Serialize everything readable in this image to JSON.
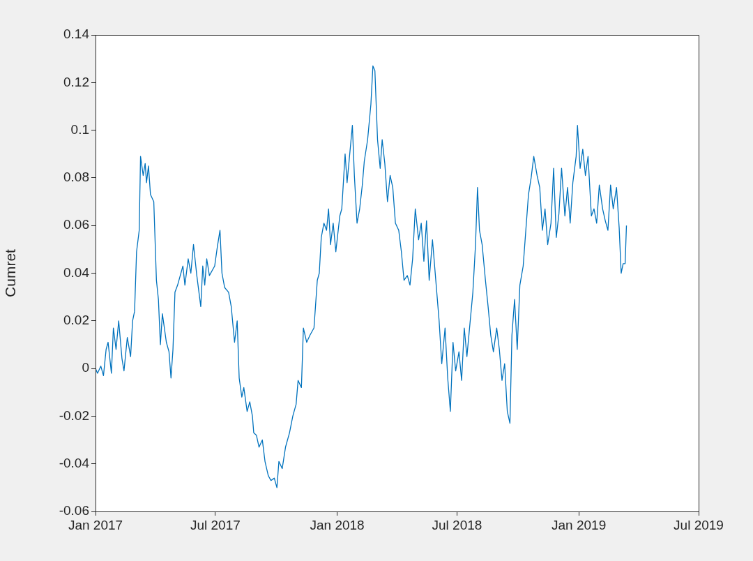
{
  "chart_data": {
    "type": "line",
    "ylabel": "Cumret",
    "grid": false,
    "marker": "none",
    "legend": false,
    "xlim": [
      "2017-01-01",
      "2019-07-01"
    ],
    "xticks": [
      {
        "value": "2017-01-01",
        "label": "Jan 2017"
      },
      {
        "value": "2017-07-01",
        "label": "Jul 2017"
      },
      {
        "value": "2018-01-01",
        "label": "Jan 2018"
      },
      {
        "value": "2018-07-01",
        "label": "Jul 2018"
      },
      {
        "value": "2019-01-01",
        "label": "Jan 2019"
      },
      {
        "value": "2019-07-01",
        "label": "Jul 2019"
      }
    ],
    "ylim": [
      -0.06,
      0.14
    ],
    "yticks": [
      -0.06,
      -0.04,
      -0.02,
      0,
      0.02,
      0.04,
      0.06,
      0.08,
      0.1,
      0.12,
      0.14
    ],
    "x": [
      "2017-01-01",
      "2017-01-04",
      "2017-01-09",
      "2017-01-13",
      "2017-01-17",
      "2017-01-20",
      "2017-01-25",
      "2017-01-28",
      "2017-02-01",
      "2017-02-05",
      "2017-02-10",
      "2017-02-13",
      "2017-02-18",
      "2017-02-23",
      "2017-02-26",
      "2017-03-01",
      "2017-03-04",
      "2017-03-08",
      "2017-03-10",
      "2017-03-14",
      "2017-03-17",
      "2017-03-19",
      "2017-03-22",
      "2017-03-25",
      "2017-03-30",
      "2017-04-03",
      "2017-04-06",
      "2017-04-09",
      "2017-04-12",
      "2017-04-18",
      "2017-04-22",
      "2017-04-25",
      "2017-04-28",
      "2017-05-01",
      "2017-05-05",
      "2017-05-13",
      "2017-05-16",
      "2017-05-21",
      "2017-05-25",
      "2017-05-29",
      "2017-06-03",
      "2017-06-09",
      "2017-06-12",
      "2017-06-15",
      "2017-06-18",
      "2017-06-22",
      "2017-06-30",
      "2017-07-04",
      "2017-07-08",
      "2017-07-11",
      "2017-07-15",
      "2017-07-21",
      "2017-07-25",
      "2017-07-30",
      "2017-08-03",
      "2017-08-06",
      "2017-08-10",
      "2017-08-13",
      "2017-08-18",
      "2017-08-22",
      "2017-08-26",
      "2017-08-28",
      "2017-09-01",
      "2017-09-05",
      "2017-09-10",
      "2017-09-14",
      "2017-09-19",
      "2017-09-23",
      "2017-09-28",
      "2017-10-02",
      "2017-10-05",
      "2017-10-10",
      "2017-10-15",
      "2017-10-21",
      "2017-10-26",
      "2017-10-31",
      "2017-11-03",
      "2017-11-08",
      "2017-11-11",
      "2017-11-16",
      "2017-11-21",
      "2017-11-27",
      "2017-12-02",
      "2017-12-05",
      "2017-12-08",
      "2017-12-12",
      "2017-12-16",
      "2017-12-19",
      "2017-12-22",
      "2017-12-26",
      "2017-12-30",
      "2018-01-05",
      "2018-01-08",
      "2018-01-13",
      "2018-01-16",
      "2018-01-19",
      "2018-01-24",
      "2018-01-27",
      "2018-01-31",
      "2018-02-04",
      "2018-02-08",
      "2018-02-11",
      "2018-02-16",
      "2018-02-21",
      "2018-02-24",
      "2018-02-27",
      "2018-03-03",
      "2018-03-07",
      "2018-03-10",
      "2018-03-14",
      "2018-03-18",
      "2018-03-22",
      "2018-03-26",
      "2018-03-30",
      "2018-04-04",
      "2018-04-08",
      "2018-04-12",
      "2018-04-17",
      "2018-04-21",
      "2018-04-25",
      "2018-04-29",
      "2018-05-04",
      "2018-05-08",
      "2018-05-12",
      "2018-05-16",
      "2018-05-20",
      "2018-05-25",
      "2018-05-30",
      "2018-06-04",
      "2018-06-08",
      "2018-06-13",
      "2018-06-17",
      "2018-06-21",
      "2018-06-25",
      "2018-06-29",
      "2018-07-04",
      "2018-07-08",
      "2018-07-12",
      "2018-07-16",
      "2018-07-20",
      "2018-07-25",
      "2018-07-29",
      "2018-08-01",
      "2018-08-04",
      "2018-08-08",
      "2018-08-13",
      "2018-08-17",
      "2018-08-21",
      "2018-08-25",
      "2018-08-30",
      "2018-09-03",
      "2018-09-07",
      "2018-09-11",
      "2018-09-15",
      "2018-09-19",
      "2018-09-22",
      "2018-09-26",
      "2018-09-30",
      "2018-10-04",
      "2018-10-09",
      "2018-10-13",
      "2018-10-17",
      "2018-10-21",
      "2018-10-25",
      "2018-10-30",
      "2018-11-03",
      "2018-11-07",
      "2018-11-11",
      "2018-11-15",
      "2018-11-20",
      "2018-11-24",
      "2018-11-28",
      "2018-12-02",
      "2018-12-06",
      "2018-12-11",
      "2018-12-15",
      "2018-12-19",
      "2018-12-23",
      "2018-12-28",
      "2018-12-30",
      "2019-01-03",
      "2019-01-07",
      "2019-01-11",
      "2019-01-15",
      "2019-01-20",
      "2019-01-24",
      "2019-01-28",
      "2019-02-01",
      "2019-02-06",
      "2019-02-10",
      "2019-02-14",
      "2019-02-18",
      "2019-02-22",
      "2019-02-27",
      "2019-03-03",
      "2019-03-06",
      "2019-03-09",
      "2019-03-12",
      "2019-03-14"
    ],
    "series": [
      {
        "color": "#0072bd",
        "values": [
          0,
          -0.002,
          0.001,
          -0.003,
          0.008,
          0.011,
          -0.002,
          0.017,
          0.008,
          0.02,
          0.004,
          -0.001,
          0.013,
          0.005,
          0.02,
          0.024,
          0.049,
          0.058,
          0.089,
          0.081,
          0.086,
          0.078,
          0.085,
          0.073,
          0.07,
          0.037,
          0.029,
          0.01,
          0.023,
          0.011,
          0.007,
          -0.004,
          0.008,
          0.032,
          0.035,
          0.043,
          0.035,
          0.046,
          0.04,
          0.052,
          0.039,
          0.026,
          0.043,
          0.035,
          0.046,
          0.039,
          0.043,
          0.051,
          0.058,
          0.04,
          0.034,
          0.032,
          0.026,
          0.011,
          0.02,
          -0.004,
          -0.012,
          -0.008,
          -0.018,
          -0.014,
          -0.02,
          -0.027,
          -0.028,
          -0.033,
          -0.03,
          -0.039,
          -0.045,
          -0.047,
          -0.046,
          -0.05,
          -0.039,
          -0.042,
          -0.033,
          -0.027,
          -0.02,
          -0.015,
          -0.005,
          -0.008,
          0.017,
          0.011,
          0.014,
          0.017,
          0.037,
          0.04,
          0.055,
          0.061,
          0.058,
          0.067,
          0.052,
          0.061,
          0.049,
          0.064,
          0.067,
          0.09,
          0.078,
          0.087,
          0.102,
          0.081,
          0.061,
          0.067,
          0.077,
          0.087,
          0.096,
          0.111,
          0.127,
          0.125,
          0.096,
          0.084,
          0.096,
          0.086,
          0.07,
          0.081,
          0.076,
          0.061,
          0.058,
          0.049,
          0.037,
          0.039,
          0.035,
          0.046,
          0.067,
          0.054,
          0.061,
          0.045,
          0.062,
          0.037,
          0.054,
          0.037,
          0.02,
          0.002,
          0.017,
          -0.004,
          -0.018,
          0.011,
          -0.001,
          0.007,
          -0.005,
          0.017,
          0.005,
          0.017,
          0.032,
          0.052,
          0.076,
          0.058,
          0.052,
          0.037,
          0.026,
          0.014,
          0.007,
          0.017,
          0.008,
          -0.005,
          0.002,
          -0.018,
          -0.023,
          0.014,
          0.029,
          0.008,
          0.035,
          0.043,
          0.058,
          0.073,
          0.08,
          0.089,
          0.081,
          0.076,
          0.058,
          0.067,
          0.052,
          0.061,
          0.084,
          0.055,
          0.065,
          0.084,
          0.064,
          0.076,
          0.061,
          0.078,
          0.089,
          0.102,
          0.084,
          0.092,
          0.081,
          0.089,
          0.064,
          0.067,
          0.061,
          0.077,
          0.067,
          0.062,
          0.058,
          0.077,
          0.067,
          0.076,
          0.059,
          0.04,
          0.044,
          0.044,
          0.06
        ]
      }
    ]
  }
}
